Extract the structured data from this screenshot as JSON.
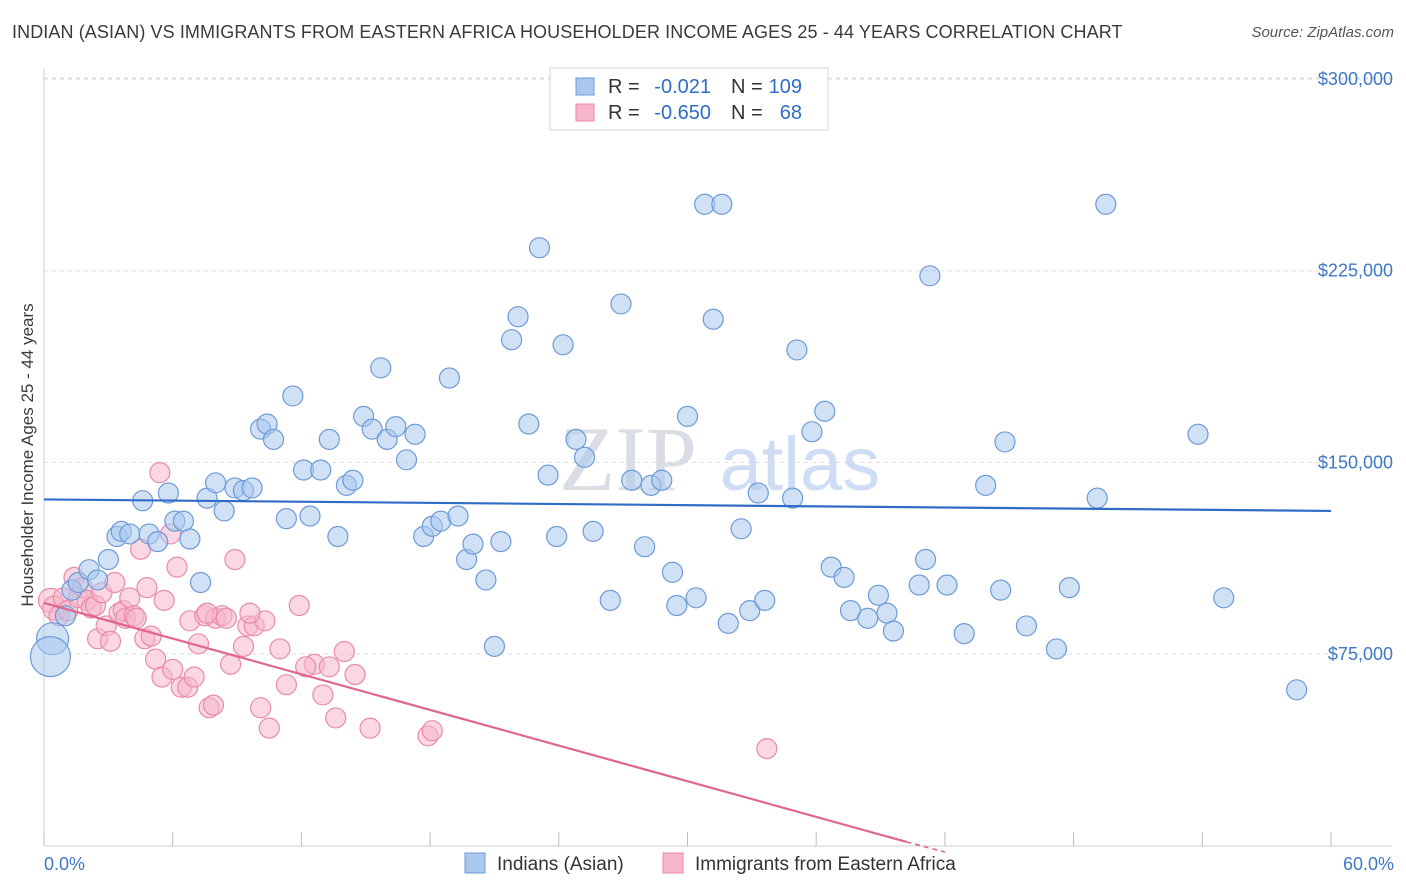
{
  "title": "INDIAN (ASIAN) VS IMMIGRANTS FROM EASTERN AFRICA HOUSEHOLDER INCOME AGES 25 - 44 YEARS CORRELATION CHART",
  "source": "Source: ZipAtlas.com",
  "watermark": {
    "zip": "ZIP",
    "atlas": "atlas"
  },
  "legend": {
    "r_label": "R =",
    "n_label": "N =",
    "rows": [
      {
        "r": "-0.021",
        "n": "109"
      },
      {
        "r": "-0.650",
        "n": "68"
      }
    ]
  },
  "colors": {
    "blue_fill": "#a9c8ee",
    "blue_stroke": "#6d9ad6",
    "blue_line": "#2f6cc6",
    "pink_fill": "#f6b6cb",
    "pink_stroke": "#e98aab",
    "pink_line": "#e0668f",
    "grid": "#dcdcdc",
    "tick_text": "#3f78c6"
  },
  "chart_data": {
    "type": "scatter",
    "title": "INDIAN (ASIAN) VS IMMIGRANTS FROM EASTERN AFRICA HOUSEHOLDER INCOME AGES 25 - 44 YEARS CORRELATION CHART",
    "xlabel": "",
    "ylabel": "Householder Income Ages 25 - 44 years",
    "xlim": [
      0,
      60
    ],
    "ylim": [
      0,
      310000
    ],
    "x_tick_labels": [
      "0.0%",
      "60.0%"
    ],
    "y_ticks": [
      75000,
      150000,
      225000,
      300000
    ],
    "y_tick_labels": [
      "$75,000",
      "$150,000",
      "$225,000",
      "$300,000"
    ],
    "legend_position": "top-center",
    "series": [
      {
        "name": "Indians (Asian)",
        "color": "#a9c8ee",
        "r": -0.021,
        "n": 109,
        "trend": {
          "x": [
            0,
            60
          ],
          "y": [
            135500,
            131000
          ]
        },
        "points": [
          [
            0.4,
            81000,
            16
          ],
          [
            0.3,
            74000,
            20
          ],
          [
            1.0,
            90000,
            10
          ],
          [
            1.3,
            100000,
            10
          ],
          [
            1.6,
            103000,
            10
          ],
          [
            2.1,
            108000,
            10
          ],
          [
            2.5,
            104000,
            10
          ],
          [
            3.0,
            112000,
            10
          ],
          [
            3.4,
            121000,
            10
          ],
          [
            3.6,
            123000,
            10
          ],
          [
            4.0,
            122000,
            10
          ],
          [
            4.6,
            135000,
            10
          ],
          [
            4.9,
            122000,
            10
          ],
          [
            5.3,
            119000,
            10
          ],
          [
            5.8,
            138000,
            10
          ],
          [
            6.1,
            127000,
            10
          ],
          [
            6.5,
            127000,
            10
          ],
          [
            6.8,
            120000,
            10
          ],
          [
            7.3,
            103000,
            10
          ],
          [
            7.6,
            136000,
            10
          ],
          [
            8.0,
            142000,
            10
          ],
          [
            8.4,
            131000,
            10
          ],
          [
            8.9,
            140000,
            10
          ],
          [
            9.3,
            139000,
            10
          ],
          [
            9.7,
            140000,
            10
          ],
          [
            10.1,
            163000,
            10
          ],
          [
            10.4,
            165000,
            10
          ],
          [
            10.7,
            159000,
            10
          ],
          [
            11.3,
            128000,
            10
          ],
          [
            11.6,
            176000,
            10
          ],
          [
            12.1,
            147000,
            10
          ],
          [
            12.4,
            129000,
            10
          ],
          [
            12.9,
            147000,
            10
          ],
          [
            13.3,
            159000,
            10
          ],
          [
            13.7,
            121000,
            10
          ],
          [
            14.1,
            141000,
            10
          ],
          [
            14.4,
            143000,
            10
          ],
          [
            14.9,
            168000,
            10
          ],
          [
            15.3,
            163000,
            10
          ],
          [
            15.7,
            187000,
            10
          ],
          [
            16.0,
            159000,
            10
          ],
          [
            16.4,
            164000,
            10
          ],
          [
            16.9,
            151000,
            10
          ],
          [
            17.3,
            161000,
            10
          ],
          [
            17.7,
            121000,
            10
          ],
          [
            18.1,
            125000,
            10
          ],
          [
            18.5,
            127000,
            10
          ],
          [
            18.9,
            183000,
            10
          ],
          [
            19.3,
            129000,
            10
          ],
          [
            19.7,
            112000,
            10
          ],
          [
            20.0,
            118000,
            10
          ],
          [
            20.6,
            104000,
            10
          ],
          [
            21.0,
            78000,
            10
          ],
          [
            21.3,
            119000,
            10
          ],
          [
            21.8,
            198000,
            10
          ],
          [
            22.1,
            207000,
            10
          ],
          [
            22.6,
            165000,
            10
          ],
          [
            23.1,
            234000,
            10
          ],
          [
            23.5,
            145000,
            10
          ],
          [
            23.9,
            121000,
            10
          ],
          [
            24.2,
            196000,
            10
          ],
          [
            24.8,
            159000,
            10
          ],
          [
            25.2,
            152000,
            10
          ],
          [
            25.6,
            123000,
            10
          ],
          [
            26.4,
            96000,
            10
          ],
          [
            26.9,
            212000,
            10
          ],
          [
            27.4,
            143000,
            10
          ],
          [
            28.0,
            117000,
            10
          ],
          [
            28.3,
            141000,
            10
          ],
          [
            28.8,
            143000,
            10
          ],
          [
            29.3,
            107000,
            10
          ],
          [
            29.5,
            94000,
            10
          ],
          [
            30.0,
            168000,
            10
          ],
          [
            30.4,
            97000,
            10
          ],
          [
            30.8,
            251000,
            10
          ],
          [
            31.2,
            206000,
            10
          ],
          [
            31.6,
            251000,
            10
          ],
          [
            31.9,
            87000,
            10
          ],
          [
            32.5,
            124000,
            10
          ],
          [
            32.9,
            92000,
            10
          ],
          [
            33.3,
            138000,
            10
          ],
          [
            33.6,
            96000,
            10
          ],
          [
            34.9,
            136000,
            10
          ],
          [
            35.1,
            194000,
            10
          ],
          [
            35.8,
            162000,
            10
          ],
          [
            36.4,
            170000,
            10
          ],
          [
            36.7,
            109000,
            10
          ],
          [
            37.3,
            105000,
            10
          ],
          [
            37.6,
            92000,
            10
          ],
          [
            38.4,
            89000,
            10
          ],
          [
            38.9,
            98000,
            10
          ],
          [
            39.3,
            91000,
            10
          ],
          [
            39.6,
            84000,
            10
          ],
          [
            40.8,
            102000,
            10
          ],
          [
            41.1,
            112000,
            10
          ],
          [
            41.3,
            223000,
            10
          ],
          [
            42.1,
            102000,
            10
          ],
          [
            42.9,
            83000,
            10
          ],
          [
            43.9,
            141000,
            10
          ],
          [
            44.6,
            100000,
            10
          ],
          [
            44.8,
            158000,
            10
          ],
          [
            45.8,
            86000,
            10
          ],
          [
            47.2,
            77000,
            10
          ],
          [
            47.8,
            101000,
            10
          ],
          [
            49.1,
            136000,
            10
          ],
          [
            49.5,
            251000,
            10
          ],
          [
            53.8,
            161000,
            10
          ],
          [
            55.0,
            97000,
            10
          ],
          [
            58.4,
            61000,
            10
          ]
        ]
      },
      {
        "name": "Immigrants from Eastern Africa",
        "color": "#f6b6cb",
        "r": -0.65,
        "n": 68,
        "trend": {
          "x": [
            0,
            40.2
          ],
          "y": [
            95000,
            1500
          ]
        },
        "trend_dashed": {
          "x": [
            40.2,
            42
          ],
          "y": [
            1500,
            -2500
          ]
        },
        "points": [
          [
            0.3,
            96000,
            12
          ],
          [
            0.5,
            93000,
            12
          ],
          [
            0.7,
            90000,
            10
          ],
          [
            0.9,
            97000,
            10
          ],
          [
            1.1,
            92000,
            10
          ],
          [
            1.4,
            105000,
            10
          ],
          [
            1.6,
            97000,
            10
          ],
          [
            1.8,
            101000,
            10
          ],
          [
            2.0,
            96000,
            10
          ],
          [
            2.2,
            93000,
            10
          ],
          [
            2.4,
            94000,
            10
          ],
          [
            2.5,
            81000,
            10
          ],
          [
            2.7,
            99000,
            10
          ],
          [
            2.9,
            86000,
            10
          ],
          [
            3.1,
            80000,
            10
          ],
          [
            3.3,
            103000,
            10
          ],
          [
            3.5,
            91000,
            10
          ],
          [
            3.7,
            92000,
            10
          ],
          [
            3.8,
            89000,
            10
          ],
          [
            4.0,
            97000,
            10
          ],
          [
            4.2,
            90000,
            10
          ],
          [
            4.3,
            89000,
            10
          ],
          [
            4.5,
            116000,
            10
          ],
          [
            4.7,
            81000,
            10
          ],
          [
            4.8,
            101000,
            10
          ],
          [
            5.0,
            82000,
            10
          ],
          [
            5.2,
            73000,
            10
          ],
          [
            5.4,
            146000,
            10
          ],
          [
            5.5,
            66000,
            10
          ],
          [
            5.6,
            96000,
            10
          ],
          [
            5.9,
            122000,
            10
          ],
          [
            6.0,
            69000,
            10
          ],
          [
            6.2,
            109000,
            10
          ],
          [
            6.4,
            62000,
            10
          ],
          [
            6.7,
            62000,
            10
          ],
          [
            6.8,
            88000,
            10
          ],
          [
            7.0,
            66000,
            10
          ],
          [
            7.2,
            79000,
            10
          ],
          [
            7.5,
            90000,
            10
          ],
          [
            7.7,
            54000,
            10
          ],
          [
            7.9,
            55000,
            10
          ],
          [
            8.0,
            89000,
            10
          ],
          [
            8.3,
            90000,
            10
          ],
          [
            8.5,
            89000,
            10
          ],
          [
            8.7,
            71000,
            10
          ],
          [
            8.9,
            112000,
            10
          ],
          [
            9.3,
            78000,
            10
          ],
          [
            9.5,
            86000,
            10
          ],
          [
            9.8,
            86000,
            10
          ],
          [
            10.1,
            54000,
            10
          ],
          [
            10.3,
            88000,
            10
          ],
          [
            10.5,
            46000,
            10
          ],
          [
            11.3,
            63000,
            10
          ],
          [
            11.9,
            94000,
            10
          ],
          [
            12.6,
            71000,
            10
          ],
          [
            13.0,
            59000,
            10
          ],
          [
            13.3,
            70000,
            10
          ],
          [
            13.6,
            50000,
            10
          ],
          [
            14.0,
            76000,
            10
          ],
          [
            14.5,
            67000,
            10
          ],
          [
            15.2,
            46000,
            10
          ],
          [
            17.9,
            43000,
            10
          ],
          [
            18.1,
            45000,
            10
          ],
          [
            33.7,
            38000,
            10
          ],
          [
            12.2,
            70000,
            10
          ],
          [
            9.6,
            91000,
            10
          ],
          [
            7.6,
            91000,
            10
          ],
          [
            11.0,
            77000,
            10
          ]
        ]
      }
    ]
  }
}
